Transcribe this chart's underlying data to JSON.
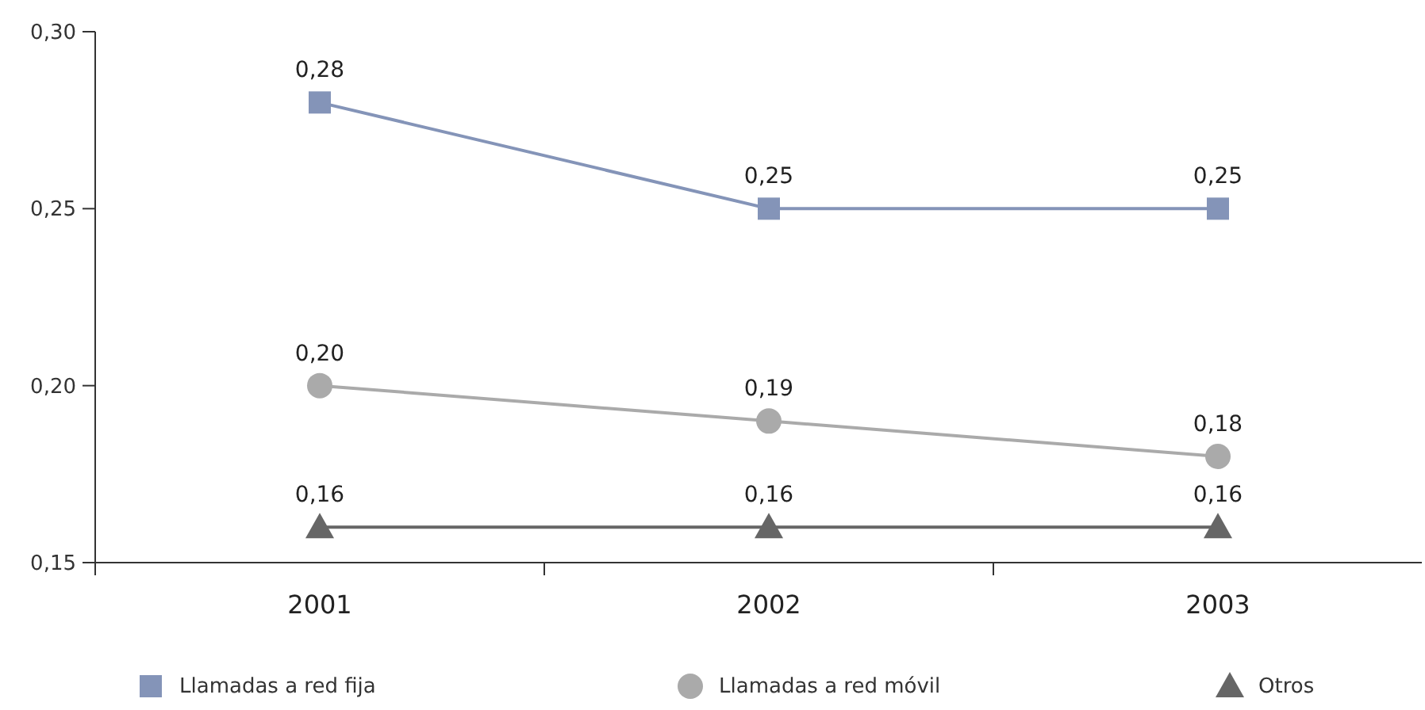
{
  "chart_data": {
    "type": "line",
    "categories": [
      "2001",
      "2002",
      "2003"
    ],
    "series": [
      {
        "name": "Llamadas a red fija",
        "color": "#8494b8",
        "marker": "square",
        "values": [
          0.28,
          0.25,
          0.25
        ],
        "value_labels": [
          "0,28",
          "0,25",
          "0,25"
        ]
      },
      {
        "name": "Llamadas a red móvil",
        "color": "#aaaaaa",
        "marker": "circle",
        "values": [
          0.2,
          0.19,
          0.18
        ],
        "value_labels": [
          "0,20",
          "0,19",
          "0,18"
        ]
      },
      {
        "name": "Otros",
        "color": "#666666",
        "marker": "triangle",
        "values": [
          0.16,
          0.16,
          0.16
        ],
        "value_labels": [
          "0,16",
          "0,16",
          "0,16"
        ]
      }
    ],
    "ylim": [
      0.15,
      0.3
    ],
    "yticks": [
      {
        "value": 0.15,
        "label": "0,15"
      },
      {
        "value": 0.2,
        "label": "0,20"
      },
      {
        "value": 0.25,
        "label": "0,25"
      },
      {
        "value": 0.3,
        "label": "0,30"
      }
    ],
    "legend": "bottom",
    "grid": false
  }
}
